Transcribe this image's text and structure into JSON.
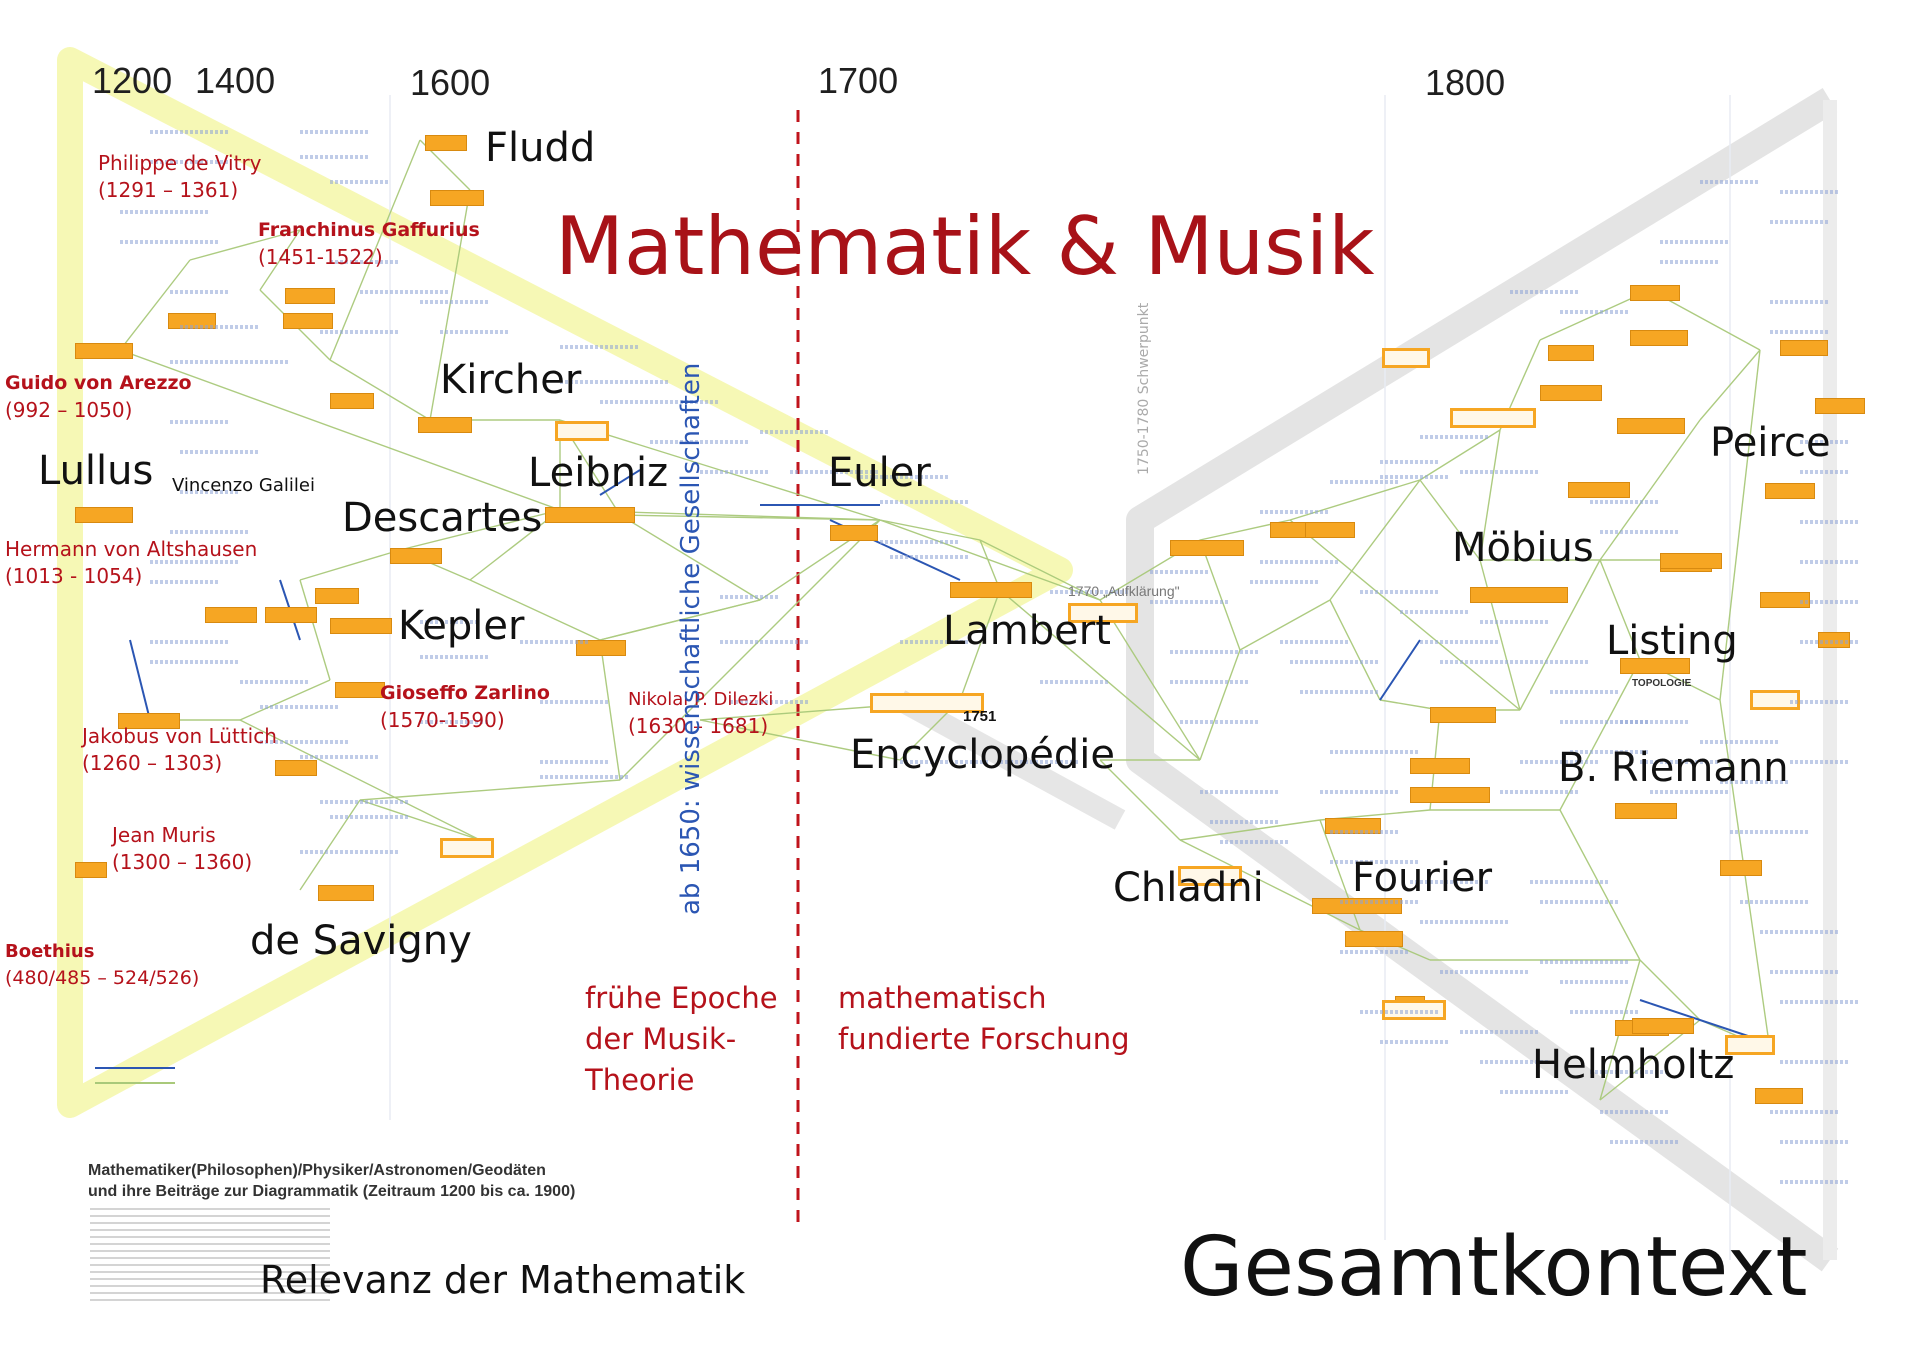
{
  "years": [
    "1200",
    "1400",
    "1600",
    "1700",
    "1800"
  ],
  "title": "Mathematik & Musik",
  "bottom_right": "Gesamtkontext",
  "bottom_left": "Relevanz der Mathematik",
  "vertical_label": "ab 1650: wissenschaftliche Gesellschaften",
  "epoch_left": "frühe Epoche\nder Musik-\nTheorie",
  "epoch_right": "mathematisch\nfundierte Forschung",
  "caption": "Mathematiker(Philosophen)/Physiker/Astronomen/Geodäten\nund ihre Beiträge zur Diagrammatik (Zeitraum 1200 bis ca. 1900)",
  "big_names": {
    "fludd": "Fludd",
    "kircher": "Kircher",
    "lullus": "Lullus",
    "leibniz": "Leibniz",
    "descartes": "Descartes",
    "kepler": "Kepler",
    "de_savigny": "de Savigny",
    "euler": "Euler",
    "lambert": "Lambert",
    "encyclopedie": "Encyclopédie",
    "chladni": "Chladni",
    "fourier": "Fourier",
    "peirce": "Peirce",
    "moebius": "Möbius",
    "listing": "Listing",
    "riemann": "B. Riemann",
    "helmholtz": "Helmholtz"
  },
  "small_names": {
    "galilei": "Vincenzo Galilei",
    "aufklaerung": "1770 „Aufklärung\"",
    "year_1751": "1751",
    "schwerpunkt": "1750-1780 Schwerpunkt",
    "topologie": "TOPOLOGIE"
  },
  "persons_red": [
    {
      "key": "vitry",
      "name": "Philippe de Vitry",
      "dates": "(1291 – 1361)",
      "bold": false
    },
    {
      "key": "gaffurius",
      "name": "Franchinus Gaffurius",
      "dates": "(1451-1522)",
      "bold": true
    },
    {
      "key": "arezzo",
      "name": "Guido von Arezzo",
      "dates": "(992 – 1050)",
      "bold": true
    },
    {
      "key": "altshausen",
      "name": "Hermann von Altshausen",
      "dates": "(1013 - 1054)",
      "bold": false
    },
    {
      "key": "zarlino",
      "name": "Gioseffo Zarlino",
      "dates": "(1570-1590)",
      "bold": true
    },
    {
      "key": "luettich",
      "name": "Jakobus von Lüttich",
      "dates": "(1260 – 1303)",
      "bold": false
    },
    {
      "key": "dilezki",
      "name": "Nikolai P. Dilezki",
      "dates": "(1630 – 1681)",
      "bold": false
    },
    {
      "key": "muris",
      "name": "Jean Muris",
      "dates": "(1300 – 1360)",
      "bold": false
    },
    {
      "key": "boethius",
      "name": "Boethius",
      "dates": "(480/485 – 524/526)",
      "bold": true
    }
  ],
  "colors": {
    "accent_red": "#b5121b",
    "title_red": "#a81218",
    "node_orange": "#f6a623",
    "edge_green": "#a9c97a",
    "edge_blue": "#2b56b3",
    "highlight_yellow": "#f3f59a",
    "divider_red": "#c0141c"
  }
}
